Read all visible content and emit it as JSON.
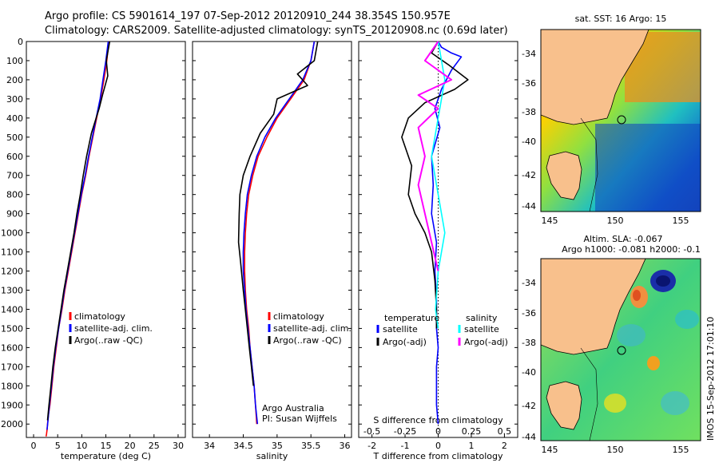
{
  "header": {
    "line1": "Argo profile: CS 5901614_197 07-Sep-2012 20120910_244 38.354S 150.957E",
    "line2": "Climatology: CARS2009. Satellite-adjusted climatology: synTS_20120908.nc (0.69d later)"
  },
  "colors": {
    "climatology": "#ff0000",
    "satellite": "#0000ff",
    "argo": "#000000",
    "sal_satellite": "#00ffff",
    "sal_argo": "#ff00ff"
  },
  "chart_data": [
    {
      "type": "line",
      "xlabel": "temperature (deg C)",
      "ylim": [
        2070,
        0
      ],
      "xlim": [
        -1.5,
        31.5
      ],
      "xticks": [
        0,
        5,
        10,
        15,
        20,
        25,
        30
      ],
      "yticks": [
        0,
        100,
        200,
        300,
        400,
        500,
        600,
        700,
        800,
        900,
        1000,
        1100,
        1200,
        1300,
        1400,
        1500,
        1600,
        1700,
        1800,
        1900,
        2000
      ],
      "legend": {
        "placement": "lower-middle",
        "entries": [
          "climatology",
          "satellite-adj. clim.",
          "Argo(..raw -QC)"
        ]
      },
      "series": [
        {
          "name": "climatology",
          "color": "#ff0000",
          "x": [
            15.6,
            15.2,
            14.6,
            13.9,
            13.1,
            12.3,
            11.5,
            10.8,
            10.0,
            9.3,
            8.6,
            7.9,
            7.2,
            6.5,
            5.9,
            5.2,
            4.7,
            4.2,
            3.8,
            3.4,
            3.1,
            2.9,
            2.8,
            2.7,
            2.6
          ],
          "y": [
            0,
            100,
            200,
            300,
            400,
            500,
            600,
            700,
            800,
            900,
            1000,
            1100,
            1200,
            1300,
            1400,
            1500,
            1600,
            1700,
            1800,
            1900,
            1950,
            2000,
            2030,
            2050,
            2065
          ]
        },
        {
          "name": "satellite-adj. clim.",
          "color": "#0000ff",
          "x": [
            15.5,
            15.0,
            14.4,
            13.8,
            13.0,
            12.2,
            11.4,
            10.7,
            9.9,
            9.2,
            8.5,
            7.8,
            7.1,
            6.4,
            5.8,
            5.2,
            4.6,
            4.1,
            3.7,
            3.3,
            3.0,
            2.8
          ],
          "y": [
            0,
            100,
            200,
            300,
            400,
            500,
            600,
            700,
            800,
            900,
            1000,
            1100,
            1200,
            1300,
            1400,
            1500,
            1600,
            1700,
            1800,
            1900,
            1980,
            2030
          ]
        },
        {
          "name": "Argo(..raw -QC)",
          "color": "#000000",
          "x": [
            15.8,
            15.1,
            15.4,
            14.3,
            13.6,
            12.0,
            11.0,
            10.3,
            9.7,
            9.0,
            8.4,
            7.7,
            7.0,
            6.3,
            5.7,
            5.1,
            4.5,
            4.0,
            3.6,
            3.2,
            2.9
          ],
          "y": [
            0,
            100,
            180,
            280,
            350,
            480,
            600,
            700,
            800,
            900,
            1000,
            1100,
            1200,
            1300,
            1400,
            1500,
            1600,
            1700,
            1800,
            1900,
            1980
          ]
        }
      ]
    },
    {
      "type": "line",
      "xlabel": "salinity",
      "ylim": [
        2070,
        0
      ],
      "xlim": [
        33.75,
        36.1
      ],
      "xticks": [
        34,
        34.5,
        35,
        35.5,
        36
      ],
      "legend": {
        "placement": "lower-right",
        "entries": [
          "climatology",
          "satellite-adj. clim.",
          "Argo(..raw -QC)"
        ]
      },
      "annotation": [
        "Argo Australia",
        "PI: Susan Wijffels"
      ],
      "series": [
        {
          "name": "climatology",
          "color": "#ff0000",
          "x": [
            35.55,
            35.5,
            35.4,
            35.2,
            35.0,
            34.85,
            34.72,
            34.64,
            34.58,
            34.55,
            34.53,
            34.52,
            34.52,
            34.53,
            34.55,
            34.58,
            34.6,
            34.63,
            34.66,
            34.68,
            34.7
          ],
          "y": [
            0,
            100,
            200,
            300,
            400,
            500,
            600,
            700,
            800,
            900,
            1000,
            1100,
            1200,
            1300,
            1400,
            1500,
            1600,
            1700,
            1800,
            1900,
            2000
          ]
        },
        {
          "name": "satellite-adj. clim.",
          "color": "#0000ff",
          "x": [
            35.55,
            35.5,
            35.38,
            35.18,
            34.98,
            34.82,
            34.7,
            34.62,
            34.56,
            34.53,
            34.51,
            34.5,
            34.5,
            34.52,
            34.54,
            34.57,
            34.6,
            34.63,
            34.66,
            34.68,
            34.71
          ],
          "y": [
            0,
            100,
            200,
            300,
            400,
            500,
            600,
            700,
            800,
            900,
            1000,
            1100,
            1200,
            1300,
            1400,
            1500,
            1600,
            1700,
            1800,
            1900,
            2000
          ]
        },
        {
          "name": "Argo(..raw -QC)",
          "color": "#000000",
          "x": [
            35.6,
            35.55,
            35.3,
            35.45,
            35.0,
            34.95,
            34.75,
            34.6,
            34.5,
            34.45,
            34.44,
            34.43,
            34.46,
            34.5,
            34.53,
            34.56,
            34.59,
            34.62,
            34.65
          ],
          "y": [
            0,
            100,
            170,
            230,
            300,
            380,
            480,
            600,
            700,
            800,
            900,
            1050,
            1150,
            1300,
            1400,
            1500,
            1600,
            1700,
            1800
          ]
        }
      ]
    },
    {
      "type": "line",
      "xlabel": "T difference from climatology",
      "xlabel2": "S difference from climatology",
      "ylim": [
        2070,
        0
      ],
      "xlim": [
        -2.4,
        2.4
      ],
      "xticks": [
        -2,
        -1,
        0,
        1,
        2
      ],
      "xticks_s": [
        -0.5,
        -0.25,
        0,
        0.25,
        0.5
      ],
      "legend": {
        "placement": "lower-middle",
        "temperature_title": "temperature",
        "salinity_title": "salinity",
        "entries": [
          "satellite",
          "Argo(-adj)",
          "satellite",
          "Argo(-adj)"
        ]
      },
      "series": [
        {
          "name": "satellite",
          "color": "#0000ff",
          "x": [
            0.0,
            0.1,
            0.4,
            0.7,
            0.4,
            0.1,
            -0.1,
            0.05,
            -0.2,
            -0.15,
            -0.2,
            -0.05,
            -0.1,
            -0.05,
            -0.05,
            0.0,
            -0.05,
            -0.05,
            -0.05,
            0.0
          ],
          "y": [
            0,
            30,
            60,
            80,
            150,
            250,
            350,
            450,
            600,
            750,
            900,
            1050,
            1200,
            1350,
            1500,
            1600,
            1700,
            1800,
            1900,
            2000
          ]
        },
        {
          "name": "Argo(-adj)",
          "color": "#000000",
          "x": [
            0.0,
            -0.2,
            0.3,
            0.9,
            0.5,
            -0.4,
            -0.9,
            -1.1,
            -0.8,
            -0.9,
            -0.7,
            -0.4,
            -0.2,
            -0.1,
            -0.05,
            -0.05
          ],
          "y": [
            0,
            60,
            120,
            200,
            250,
            320,
            400,
            500,
            650,
            800,
            900,
            1000,
            1100,
            1250,
            1400,
            1500
          ]
        },
        {
          "name": "salinity satellite",
          "color": "#00ffff",
          "x": [
            0.0,
            0.05,
            0.0,
            -0.05,
            0.0,
            0.05,
            0.0,
            -0.02,
            0.0
          ],
          "y": [
            0,
            200,
            400,
            600,
            800,
            1000,
            1200,
            1400,
            1500
          ]
        },
        {
          "name": "salinity Argo(-adj)",
          "color": "#ff00ff",
          "x": [
            0.0,
            -0.1,
            0.1,
            -0.15,
            0.0,
            -0.15,
            -0.1,
            -0.15,
            -0.1,
            -0.05,
            0.0
          ],
          "y": [
            0,
            100,
            200,
            280,
            350,
            450,
            600,
            750,
            900,
            1050,
            1200
          ]
        }
      ]
    }
  ],
  "maps": [
    {
      "title": "sat. SST: 16 Argo: 15",
      "lat_ticks": [
        "-34",
        "-36",
        "-38",
        "-40",
        "-42",
        "-44"
      ],
      "lon_ticks": [
        "145",
        "150",
        "155"
      ]
    },
    {
      "title_line1": "Altim. SLA: -0.067",
      "title_line2": "Argo h1000: -0.081 h2000: -0.1",
      "lat_ticks": [
        "-34",
        "-36",
        "-38",
        "-40",
        "-42",
        "-44"
      ],
      "lon_ticks": [
        "145",
        "150",
        "155"
      ]
    }
  ],
  "side_label": "IMOS 15-Sep-2012 17:01:10"
}
